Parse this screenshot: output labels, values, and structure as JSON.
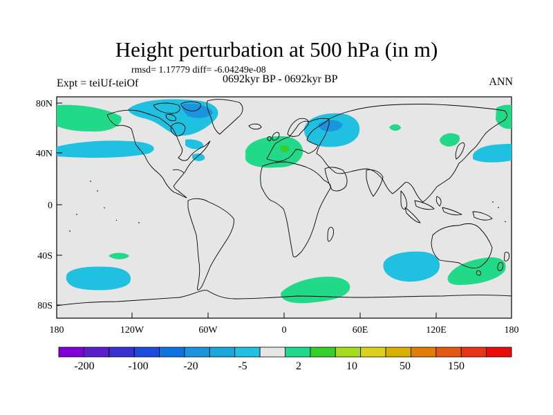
{
  "title": "Height perturbation at 500 hPa (in m)",
  "stats": "rmsd= 1.17779 diff= -6.04249e-08",
  "expt": "Expt = teiUf-teiOf",
  "period": "0692kyr BP - 0692kyr BP",
  "season": "ANN",
  "lat_labels": [
    "80N",
    "40N",
    "0",
    "40S",
    "80S"
  ],
  "lon_labels": [
    "180",
    "120W",
    "60W",
    "0",
    "60E",
    "120E",
    "180"
  ],
  "colorbar": {
    "labels": [
      "-200",
      "-100",
      "-20",
      "-5",
      "2",
      "10",
      "50",
      "150"
    ],
    "colors": [
      "#7f00d9",
      "#5a1ecd",
      "#3a2fcf",
      "#1d4be0",
      "#0d73e3",
      "#1a94dd",
      "#19a7dd",
      "#1fc0e0",
      "#e6e6e6",
      "#1fd98c",
      "#34cf2a",
      "#a6dd1a",
      "#dcd21d",
      "#d8b000",
      "#e07c07",
      "#e35813",
      "#ea3317",
      "#ea0b0b"
    ]
  },
  "colors": {
    "ocean": "#e6e6e6",
    "coast": "#000000",
    "positive": "#22d98a",
    "negative": "#1fc0e0",
    "negative_strong": "#1a94dd",
    "positive_strong": "#34cf2a"
  }
}
